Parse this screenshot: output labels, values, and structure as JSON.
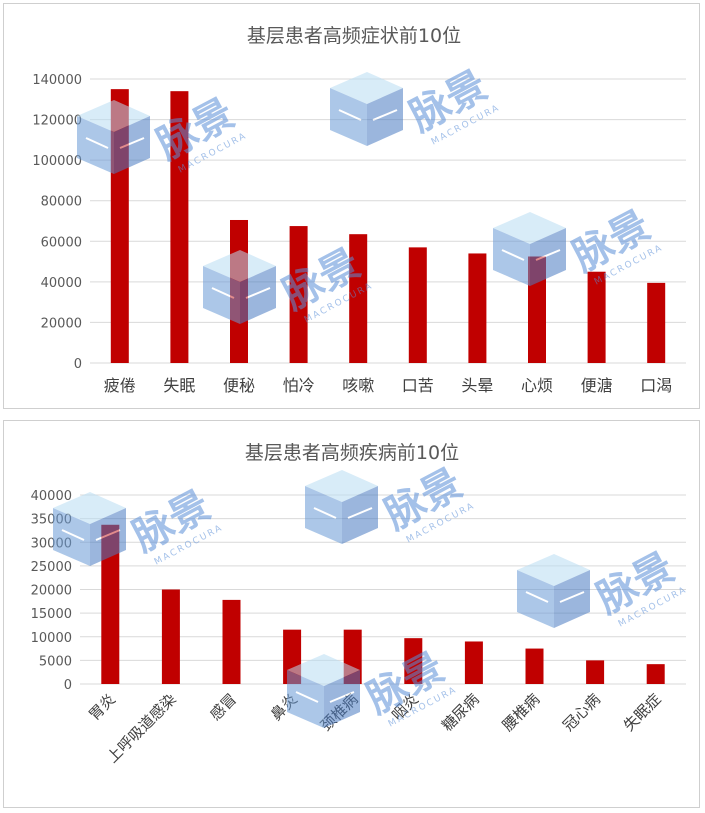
{
  "charts": [
    {
      "type": "bar",
      "title": "基层患者高频症状前10位",
      "categories": [
        "疲倦",
        "失眠",
        "便秘",
        "怕冷",
        "咳嗽",
        "口苦",
        "头晕",
        "心烦",
        "便溏",
        "口渴"
      ],
      "values": [
        135000,
        134000,
        70500,
        67500,
        63500,
        57000,
        54000,
        52500,
        45000,
        39500
      ],
      "ylim": [
        0,
        140000
      ],
      "yticks": [
        0,
        20000,
        40000,
        60000,
        80000,
        100000,
        120000,
        140000
      ],
      "grid": true,
      "bar_color": "#c00000"
    },
    {
      "type": "bar",
      "title": "基层患者高频疾病前10位",
      "categories": [
        "胃炎",
        "上呼吸道感染",
        "感冒",
        "鼻炎",
        "颈椎病",
        "咽炎",
        "糖尿病",
        "腰椎病",
        "冠心病",
        "失眠症"
      ],
      "values": [
        33700,
        20000,
        17800,
        11500,
        11500,
        9700,
        9000,
        7500,
        5000,
        4200
      ],
      "ylim": [
        0,
        40000
      ],
      "yticks": [
        0,
        5000,
        10000,
        15000,
        20000,
        25000,
        30000,
        35000,
        40000
      ],
      "grid": true,
      "bar_color": "#c00000"
    }
  ],
  "watermark": {
    "brand_text": "脉景",
    "sub_text": "MACROCURA",
    "color": "#5b8fd8"
  }
}
